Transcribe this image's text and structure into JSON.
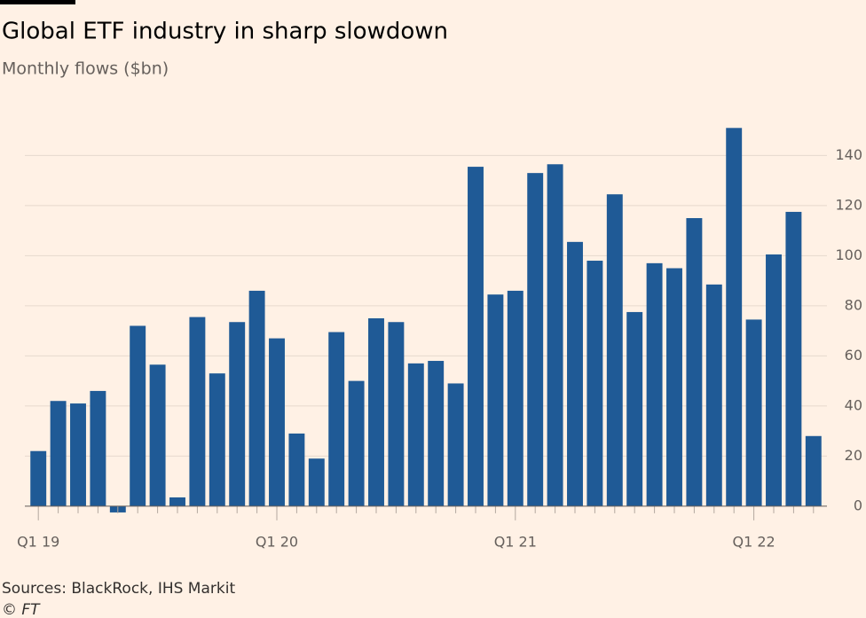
{
  "chart_data": {
    "type": "bar",
    "title": "Global ETF industry in sharp slowdown",
    "subtitle": "Monthly flows ($bn)",
    "source": "Sources: BlackRock, IHS Markit",
    "credit": "© FT",
    "categories": [
      "Q1 19",
      null,
      null,
      null,
      null,
      null,
      null,
      null,
      null,
      null,
      null,
      null,
      "Q1 20",
      null,
      null,
      null,
      null,
      null,
      null,
      null,
      null,
      null,
      null,
      null,
      "Q1 21",
      null,
      null,
      null,
      null,
      null,
      null,
      null,
      null,
      null,
      null,
      null,
      "Q1 22",
      null,
      null,
      null
    ],
    "values": [
      22,
      42,
      41,
      46,
      -2.5,
      72,
      56.5,
      3.5,
      75.5,
      53,
      73.5,
      86,
      67,
      29,
      19,
      69.5,
      50,
      75,
      73.5,
      57,
      58,
      49,
      135.5,
      84.5,
      86,
      133,
      136.5,
      105.5,
      98,
      124.5,
      77.5,
      97,
      95,
      115,
      88.5,
      151,
      74.5,
      100.5,
      117.5,
      28
    ],
    "color": "#1f5a96",
    "ylim": [
      -5,
      155
    ],
    "yticks": [
      0,
      20,
      40,
      60,
      80,
      100,
      120,
      140
    ],
    "grid": true
  }
}
